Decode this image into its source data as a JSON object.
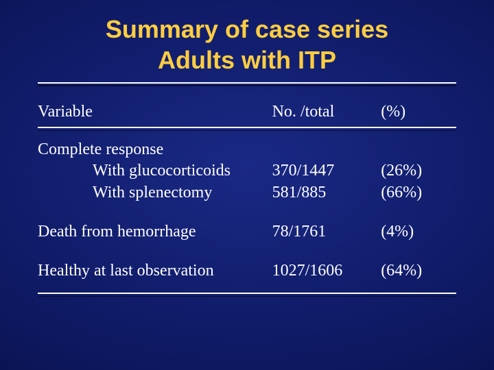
{
  "colors": {
    "background_center": "#1a2985",
    "background_mid": "#0d1860",
    "background_edge": "#050b38",
    "title_color": "#ffcd40",
    "text_color": "#ffffff",
    "rule_color": "#ffffff",
    "rule_shadow": "#0a0f30"
  },
  "typography": {
    "title_font": "Arial",
    "title_fontsize": 36,
    "title_weight": 700,
    "body_font": "Times New Roman",
    "body_fontsize": 24
  },
  "title": {
    "line1": "Summary of case series",
    "line2": "Adults with ITP"
  },
  "table": {
    "headers": {
      "variable": "Variable",
      "no_total": "No. /total",
      "pct": "(%)"
    },
    "section_complete_response": "Complete response",
    "row_gluco": {
      "label": "With glucocorticoids",
      "no_total": "370/1447",
      "pct": "(26%)"
    },
    "row_splen": {
      "label": "With splenectomy",
      "no_total": "581/885",
      "pct": "(66%)"
    },
    "row_death": {
      "label": "Death from hemorrhage",
      "no_total": "78/1761",
      "pct": "(4%)"
    },
    "row_healthy": {
      "label": "Healthy at last observation",
      "no_total": "1027/1606",
      "pct": "(64%)"
    }
  }
}
